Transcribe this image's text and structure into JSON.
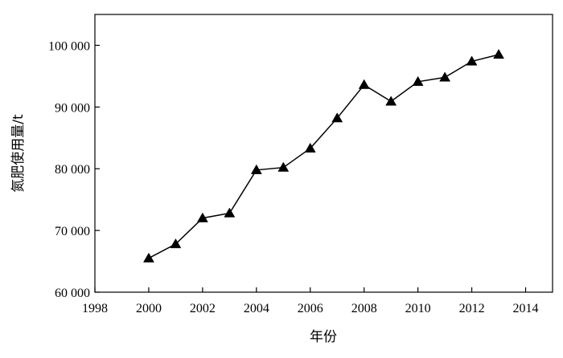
{
  "chart_data": {
    "type": "line",
    "title": "",
    "xlabel": "年份",
    "ylabel": "氮肥使用量/t",
    "xlim": [
      1998,
      2015
    ],
    "ylim": [
      60000,
      105000
    ],
    "x_ticks": [
      1998,
      2000,
      2002,
      2004,
      2006,
      2008,
      2010,
      2012,
      2014
    ],
    "x_tick_labels": [
      "1998",
      "2000",
      "2002",
      "2004",
      "2006",
      "2008",
      "2010",
      "2012",
      "2014"
    ],
    "y_ticks": [
      60000,
      70000,
      80000,
      90000,
      100000
    ],
    "y_tick_labels": [
      "60 000",
      "70 000",
      "80 000",
      "90 000",
      "100 000"
    ],
    "grid": false,
    "legend": "none",
    "marker": "triangle",
    "series": [
      {
        "x": [
          2000,
          2001,
          2002,
          2003,
          2004,
          2005,
          2006,
          2007,
          2008,
          2009,
          2010,
          2011,
          2012,
          2013
        ],
        "y": [
          65500,
          67800,
          72000,
          72800,
          79800,
          80200,
          83300,
          88200,
          93600,
          90900,
          94100,
          94800,
          97400,
          98500
        ]
      }
    ]
  }
}
